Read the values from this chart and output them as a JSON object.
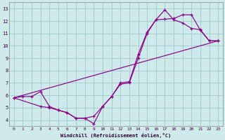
{
  "xlabel": "Windchill (Refroidissement éolien,°C)",
  "background_color": "#ceeaea",
  "grid_color": "#a8cccc",
  "line_color": "#880088",
  "xlim": [
    -0.5,
    23.5
  ],
  "ylim": [
    3.5,
    13.5
  ],
  "xticks": [
    0,
    1,
    2,
    3,
    4,
    5,
    6,
    7,
    8,
    9,
    10,
    11,
    12,
    13,
    14,
    15,
    16,
    17,
    18,
    19,
    20,
    21,
    22,
    23
  ],
  "yticks": [
    4,
    5,
    6,
    7,
    8,
    9,
    10,
    11,
    12,
    13
  ],
  "line1_x": [
    0,
    1,
    2,
    3,
    4,
    5,
    6,
    7,
    8,
    9,
    10,
    11,
    12,
    13,
    14,
    15,
    16,
    17,
    18,
    19,
    20,
    21,
    22,
    23
  ],
  "line1_y": [
    5.8,
    5.9,
    5.9,
    6.3,
    5.1,
    4.8,
    4.6,
    4.15,
    4.15,
    3.7,
    5.1,
    5.9,
    7.0,
    7.1,
    9.3,
    11.1,
    12.1,
    12.9,
    12.1,
    11.85,
    11.4,
    11.3,
    10.4,
    10.4
  ],
  "line2_x": [
    0,
    3,
    4,
    5,
    6,
    7,
    8,
    9,
    10,
    11,
    12,
    13,
    14,
    15,
    16,
    17,
    18,
    19,
    20,
    21,
    22,
    23
  ],
  "line2_y": [
    5.8,
    5.1,
    5.0,
    4.8,
    4.6,
    4.15,
    4.15,
    4.3,
    5.1,
    5.9,
    6.9,
    7.0,
    9.0,
    11.0,
    12.1,
    12.15,
    12.2,
    12.5,
    12.5,
    11.25,
    10.4,
    10.4
  ],
  "line3_x": [
    0,
    23
  ],
  "line3_y": [
    5.8,
    10.4
  ]
}
